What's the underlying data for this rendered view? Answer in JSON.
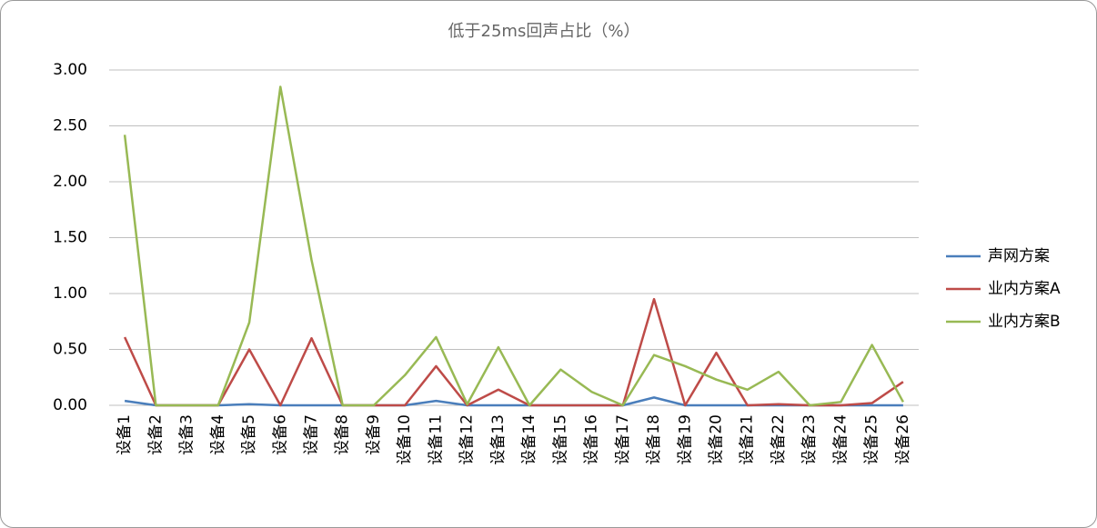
{
  "chart_data": {
    "type": "line",
    "title": "低于25ms回声占比（%）",
    "categories": [
      "设备1",
      "设备2",
      "设备3",
      "设备4",
      "设备5",
      "设备6",
      "设备7",
      "设备8",
      "设备9",
      "设备10",
      "设备11",
      "设备12",
      "设备13",
      "设备14",
      "设备15",
      "设备16",
      "设备17",
      "设备18",
      "设备19",
      "设备20",
      "设备21",
      "设备22",
      "设备23",
      "设备24",
      "设备25",
      "设备26"
    ],
    "series": [
      {
        "name": "声网方案",
        "color": "#4a7ebb",
        "values": [
          0.04,
          0,
          0,
          0,
          0.01,
          0,
          0,
          0,
          0,
          0,
          0.04,
          0,
          0,
          0,
          0,
          0,
          0,
          0.07,
          0,
          0,
          0,
          0,
          0,
          0,
          0,
          0
        ]
      },
      {
        "name": "业内方案A",
        "color": "#be4b48",
        "values": [
          0.61,
          0,
          0,
          0,
          0.5,
          0,
          0.6,
          0,
          0,
          0,
          0.35,
          0,
          0.14,
          0,
          0,
          0,
          0,
          0.95,
          0,
          0.47,
          0,
          0.01,
          0,
          0,
          0.02,
          0.21
        ]
      },
      {
        "name": "业内方案B",
        "color": "#98b954",
        "values": [
          2.42,
          0,
          0,
          0,
          0.74,
          2.85,
          1.3,
          0,
          0,
          0.27,
          0.61,
          0.01,
          0.52,
          0,
          0.32,
          0.12,
          0,
          0.45,
          0.35,
          0.23,
          0.14,
          0.3,
          0,
          0.03,
          0.54,
          0.03
        ]
      }
    ],
    "ylim": [
      0,
      3
    ],
    "yticks": [
      {
        "value": 0,
        "label": "0.00"
      },
      {
        "value": 0.5,
        "label": "0.50"
      },
      {
        "value": 1,
        "label": "1.00"
      },
      {
        "value": 1.5,
        "label": "1.50"
      },
      {
        "value": 2,
        "label": "2.00"
      },
      {
        "value": 2.5,
        "label": "2.50"
      },
      {
        "value": 3,
        "label": "3.00"
      }
    ],
    "grid": true,
    "legend": "right"
  }
}
